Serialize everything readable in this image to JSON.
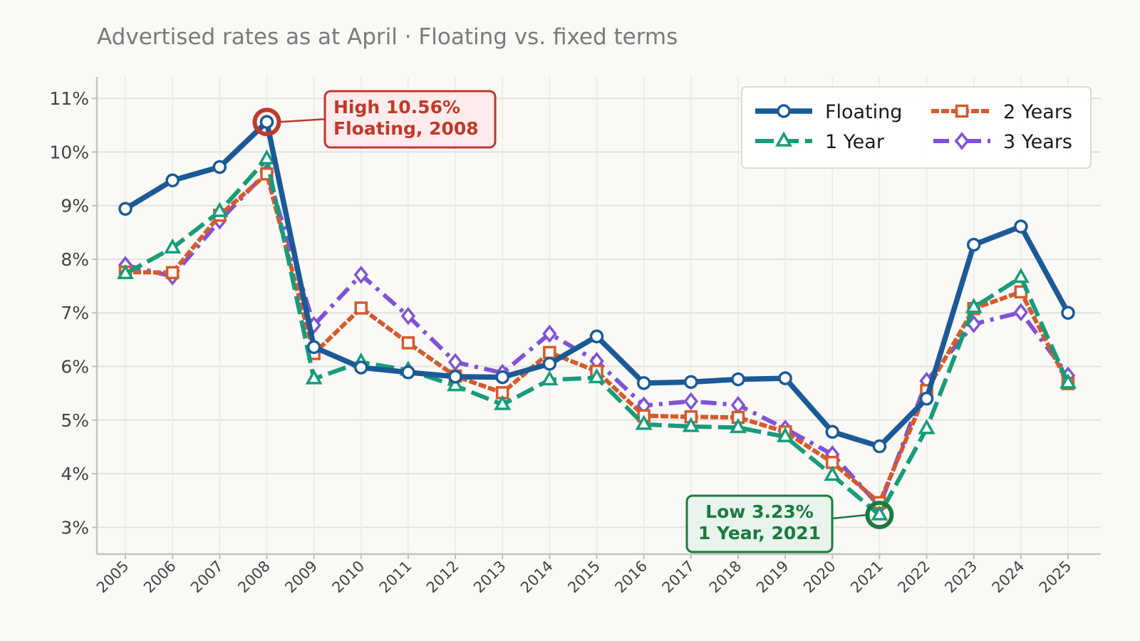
{
  "chart_data": {
    "type": "line",
    "title": "Advertised rates as at April · Floating vs. fixed terms",
    "xlabel": "",
    "ylabel": "",
    "x": [
      "2005",
      "2006",
      "2007",
      "2008",
      "2009",
      "2010",
      "2011",
      "2012",
      "2013",
      "2014",
      "2015",
      "2016",
      "2017",
      "2018",
      "2019",
      "2020",
      "2021",
      "2022",
      "2023",
      "2024",
      "2025"
    ],
    "ylim": [
      2.5,
      11.4
    ],
    "yticks": [
      3,
      4,
      5,
      6,
      7,
      8,
      9,
      10,
      11
    ],
    "ytick_labels": [
      "3%",
      "4%",
      "5%",
      "6%",
      "7%",
      "8%",
      "9%",
      "10%",
      "11%"
    ],
    "grid": true,
    "legend_position": "top-right",
    "series": [
      {
        "name": "Floating",
        "color": "#1b5a96",
        "dash": "solid",
        "marker": "circle",
        "values": [
          8.94,
          9.47,
          9.72,
          10.56,
          6.36,
          5.98,
          5.89,
          5.81,
          5.8,
          6.05,
          6.56,
          5.69,
          5.71,
          5.76,
          5.78,
          4.78,
          4.51,
          5.4,
          8.27,
          8.61,
          7.0
        ]
      },
      {
        "name": "1 Year",
        "color": "#179c7a",
        "dash": "dashed",
        "marker": "triangle",
        "values": [
          7.73,
          8.21,
          8.89,
          9.87,
          5.77,
          6.08,
          5.93,
          5.64,
          5.29,
          5.75,
          5.79,
          4.92,
          4.88,
          4.86,
          4.69,
          3.97,
          3.23,
          4.84,
          7.1,
          7.66,
          5.69
        ]
      },
      {
        "name": "2 Years",
        "color": "#d55a2c",
        "dash": "dotted",
        "marker": "square",
        "values": [
          7.76,
          7.75,
          8.82,
          9.59,
          6.24,
          7.09,
          6.44,
          5.82,
          5.51,
          6.26,
          5.91,
          5.08,
          5.06,
          5.05,
          4.78,
          4.21,
          3.46,
          5.55,
          7.08,
          7.39,
          5.68
        ]
      },
      {
        "name": "3 Years",
        "color": "#7e53d6",
        "dash": "dashdot",
        "marker": "diamond",
        "values": [
          7.89,
          7.68,
          8.72,
          9.63,
          6.77,
          7.71,
          6.94,
          6.08,
          5.88,
          6.61,
          6.1,
          5.27,
          5.35,
          5.28,
          4.84,
          4.36,
          3.39,
          5.73,
          6.79,
          7.01,
          5.83
        ]
      }
    ],
    "annotations": [
      {
        "label_lines": [
          "High  10.56%",
          "Floating, 2008"
        ],
        "x": "2008",
        "y": 10.56,
        "color": "#c0392b",
        "fill": "#fdeceb"
      },
      {
        "label_lines": [
          "Low  3.23%",
          "1 Year, 2021"
        ],
        "x": "2021",
        "y": 3.23,
        "color": "#1b7a3e",
        "fill": "#e8f4ec"
      }
    ]
  }
}
